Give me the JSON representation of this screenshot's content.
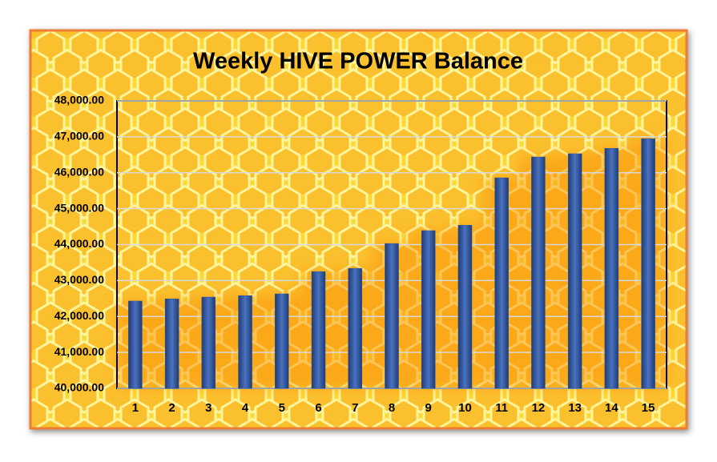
{
  "chart_data": {
    "type": "bar",
    "title": "Weekly HIVE POWER Balance",
    "categories": [
      "1",
      "2",
      "3",
      "4",
      "5",
      "6",
      "7",
      "8",
      "9",
      "10",
      "11",
      "12",
      "13",
      "14",
      "15"
    ],
    "values": [
      42430,
      42490,
      42540,
      42580,
      42630,
      43250,
      43340,
      44030,
      44390,
      44540,
      45860,
      46440,
      46530,
      46680,
      46950
    ],
    "color": "#2f5597",
    "ylim": [
      40000,
      48000
    ],
    "yticks": [
      {
        "value": 40000,
        "label": "40,000.00"
      },
      {
        "value": 41000,
        "label": "41,000.00"
      },
      {
        "value": 42000,
        "label": "42,000.00"
      },
      {
        "value": 43000,
        "label": "43,000.00"
      },
      {
        "value": 44000,
        "label": "44,000.00"
      },
      {
        "value": 45000,
        "label": "45,000.00"
      },
      {
        "value": 46000,
        "label": "46,000.00"
      },
      {
        "value": 47000,
        "label": "47,000.00"
      },
      {
        "value": 48000,
        "label": "48,000.00"
      }
    ],
    "grid": true
  }
}
